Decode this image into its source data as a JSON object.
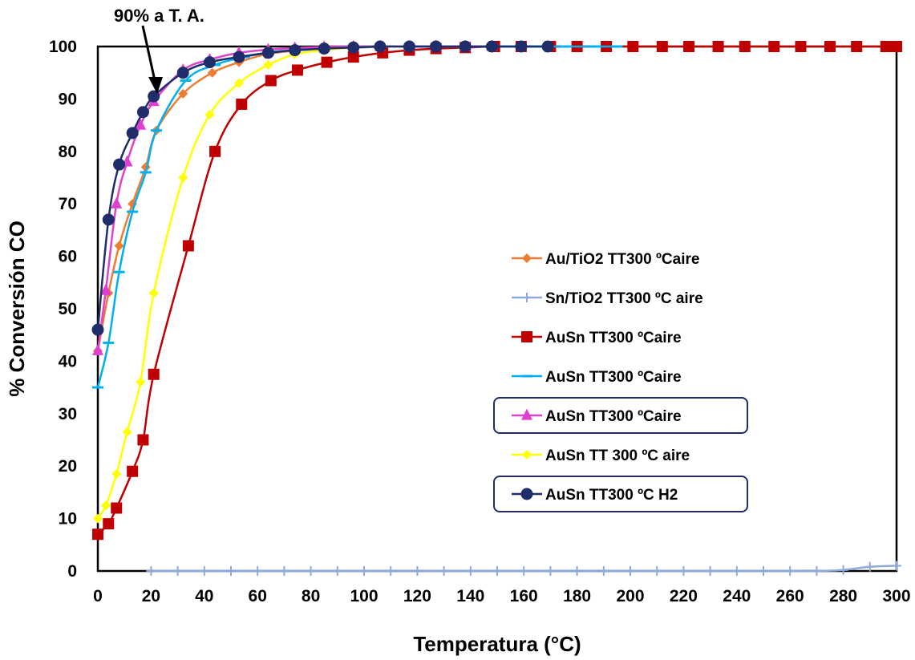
{
  "chart_data": {
    "type": "line",
    "title": "",
    "xlabel": "Temperatura (°C)",
    "ylabel": "% Conversión CO",
    "xlim": [
      0,
      300
    ],
    "ylim": [
      0,
      100
    ],
    "xticks": [
      0,
      20,
      40,
      60,
      80,
      100,
      120,
      140,
      160,
      180,
      200,
      220,
      240,
      260,
      280,
      300
    ],
    "yticks": [
      0,
      10,
      20,
      30,
      40,
      50,
      60,
      70,
      80,
      90,
      100
    ],
    "grid": false,
    "legend_position": "right",
    "annotation": {
      "text": "90% a T. A.",
      "x": 22,
      "y": 90.5
    },
    "series": [
      {
        "name": "Au/TiO2 TT300 ºCaire",
        "color": "#ED7D31",
        "marker": "diamond",
        "x": [
          0,
          4,
          8,
          13,
          18,
          22,
          32,
          43,
          53,
          63,
          74,
          84,
          95,
          105,
          116,
          126,
          137,
          147
        ],
        "y": [
          42,
          53,
          62,
          70,
          77,
          84,
          91,
          95,
          97,
          98.5,
          99.2,
          99.6,
          99.8,
          99.9,
          100,
          100,
          100,
          100
        ]
      },
      {
        "name": "Sn/TiO2 TT300 ºC aire",
        "color": "#8EA9DB",
        "marker": "plus",
        "x": [
          20,
          30,
          40,
          50,
          60,
          70,
          80,
          90,
          100,
          110,
          120,
          130,
          140,
          150,
          160,
          170,
          180,
          190,
          200,
          210,
          220,
          230,
          240,
          250,
          260,
          270,
          280,
          290,
          300
        ],
        "y": [
          0,
          0,
          0,
          0,
          0,
          0,
          0,
          0,
          0,
          0,
          0,
          0,
          0,
          0,
          0,
          0,
          0,
          0,
          0,
          0,
          0,
          0,
          0,
          0,
          0,
          0,
          0.2,
          0.8,
          1
        ]
      },
      {
        "name": "AuSn TT300 ºCaire",
        "color": "#C00000",
        "marker": "square",
        "x": [
          0,
          4,
          7,
          13,
          17,
          21,
          34,
          44,
          54,
          65,
          75,
          86,
          96,
          107,
          117,
          127,
          138,
          149,
          159,
          170,
          180,
          191,
          201,
          212,
          222,
          233,
          243,
          254,
          264,
          275,
          285,
          296,
          300
        ],
        "y": [
          7,
          9,
          12,
          19,
          25,
          37.5,
          62,
          80,
          89,
          93.5,
          95.5,
          97,
          98,
          98.8,
          99.3,
          99.6,
          99.8,
          100,
          100,
          100,
          100,
          100,
          100,
          100,
          100,
          100,
          100,
          100,
          100,
          100,
          100,
          100,
          100
        ]
      },
      {
        "name": "AuSn TT300 ºCaire",
        "color": "#00B0F0",
        "marker": "dash",
        "x": [
          0,
          4,
          8,
          13,
          18,
          22,
          33,
          44,
          55,
          66,
          77,
          88,
          99,
          110,
          121,
          132,
          143,
          154,
          165,
          176,
          187,
          195
        ],
        "y": [
          35,
          43.5,
          57,
          68.5,
          76,
          84,
          93.5,
          96.5,
          98,
          99,
          99.4,
          99.7,
          99.9,
          100,
          100,
          100,
          100,
          100,
          100,
          100,
          100,
          100
        ]
      },
      {
        "name": "AuSn TT300 ºCaire",
        "color": "#E040D0",
        "marker": "triangle",
        "x": [
          0,
          3,
          7,
          11,
          16,
          21,
          32,
          42,
          53,
          64,
          74,
          85,
          96,
          106,
          117,
          127,
          138,
          148
        ],
        "y": [
          42,
          53.5,
          70,
          78,
          85,
          89.5,
          95.5,
          97.5,
          98.8,
          99.4,
          99.7,
          99.9,
          100,
          100,
          100,
          100,
          100,
          100
        ]
      },
      {
        "name": "AuSn TT 300 ºC  aire",
        "color": "#FFFF00",
        "marker": "diamond",
        "x": [
          0,
          3,
          7,
          11,
          16,
          21,
          32,
          42,
          53,
          64,
          74,
          85,
          96,
          106,
          117
        ],
        "y": [
          10,
          12.5,
          18.5,
          26.5,
          36,
          53,
          75,
          87,
          93,
          96.5,
          98.5,
          99.3,
          99.8,
          100,
          100
        ]
      },
      {
        "name": "AuSn TT300 ºC H2",
        "color": "#1F2D6B",
        "marker": "circle",
        "x": [
          0,
          4,
          8,
          13,
          17,
          21,
          32,
          42,
          53,
          64,
          74,
          85,
          96,
          106,
          117,
          127,
          138,
          148,
          159,
          169
        ],
        "y": [
          46,
          67,
          77.5,
          83.5,
          87.5,
          90.5,
          95,
          97,
          98,
          98.8,
          99.3,
          99.6,
          99.8,
          100,
          100,
          100,
          100,
          100,
          100,
          100
        ]
      }
    ],
    "legend_boxed": [
      4,
      6
    ]
  }
}
